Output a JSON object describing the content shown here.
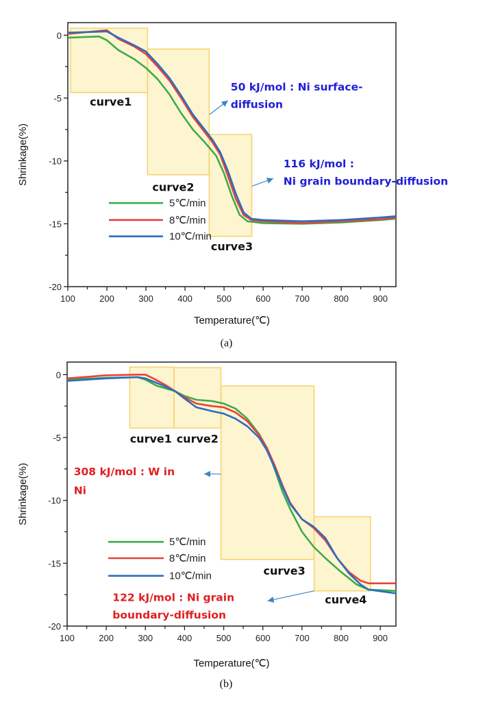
{
  "colors": {
    "series_5": "#3cab4a",
    "series_8": "#e8413c",
    "series_10": "#2a6ebf",
    "box_fill": "#fdf2c8",
    "box_stroke": "#f5d36a",
    "annot_blue": "#1f1fd6",
    "annot_red": "#e02020",
    "arrow": "#3f86c4"
  },
  "chart_data": [
    {
      "type": "line",
      "caption": "(a)",
      "xlabel": "Temperature(℃)",
      "ylabel": "Shrinkage(%)",
      "xlim": [
        100,
        940
      ],
      "ylim": [
        -20,
        1
      ],
      "xticks": [
        "100",
        "200",
        "300",
        "400",
        "500",
        "600",
        "700",
        "800",
        "900"
      ],
      "yticks": [
        "0",
        "-5",
        "-10",
        "-15",
        "-20"
      ],
      "grid": false,
      "legend_placement": "lower-left",
      "series": [
        {
          "name": "5℃/min",
          "color_key": "series_5",
          "x": [
            100,
            180,
            200,
            230,
            270,
            300,
            330,
            360,
            390,
            420,
            450,
            480,
            500,
            520,
            540,
            560,
            600,
            700,
            800,
            900,
            940
          ],
          "y": [
            -0.2,
            -0.1,
            -0.4,
            -1.2,
            -1.9,
            -2.6,
            -3.5,
            -4.7,
            -6.2,
            -7.5,
            -8.5,
            -9.6,
            -11,
            -12.8,
            -14.3,
            -14.8,
            -14.95,
            -15.0,
            -14.9,
            -14.7,
            -14.6
          ]
        },
        {
          "name": "8℃/min",
          "color_key": "series_8",
          "x": [
            100,
            200,
            230,
            270,
            300,
            330,
            360,
            390,
            420,
            450,
            470,
            490,
            510,
            530,
            550,
            570,
            600,
            700,
            800,
            900,
            940
          ],
          "y": [
            0.1,
            0.4,
            -0.3,
            -0.9,
            -1.5,
            -2.5,
            -3.6,
            -5,
            -6.5,
            -7.7,
            -8.5,
            -9.5,
            -11.2,
            -13,
            -14.3,
            -14.7,
            -14.8,
            -14.95,
            -14.8,
            -14.65,
            -14.5
          ]
        },
        {
          "name": "10℃/min",
          "color_key": "series_10",
          "x": [
            100,
            200,
            230,
            270,
            300,
            330,
            360,
            390,
            420,
            450,
            470,
            490,
            510,
            530,
            550,
            570,
            600,
            700,
            800,
            900,
            940
          ],
          "y": [
            0.2,
            0.3,
            -0.2,
            -0.8,
            -1.3,
            -2.3,
            -3.4,
            -4.8,
            -6.3,
            -7.5,
            -8.3,
            -9.3,
            -10.8,
            -12.6,
            -14.1,
            -14.6,
            -14.7,
            -14.8,
            -14.7,
            -14.5,
            -14.4
          ]
        }
      ],
      "regions": [
        {
          "label": "curve1",
          "x": [
            107,
            304
          ],
          "y": [
            0.56,
            -4.56
          ]
        },
        {
          "label": "curve2",
          "x": [
            304,
            462
          ],
          "y": [
            -1.1,
            -11.1
          ]
        },
        {
          "label": "curve3",
          "x": [
            462,
            571
          ],
          "y": [
            -7.9,
            -16.0
          ]
        }
      ],
      "annotations": [
        {
          "lines": [
            "50 kJ/mol : Ni surface-",
            "diffusion"
          ],
          "color_key": "annot_blue",
          "from": [
            463,
            -6.3
          ],
          "to": [
            510,
            -5.2
          ]
        },
        {
          "lines": [
            "116 kJ/mol :",
            "Ni grain boundary-diffusion"
          ],
          "color_key": "annot_blue",
          "from": [
            572,
            -12.0
          ],
          "to": [
            626,
            -11.4
          ]
        }
      ]
    },
    {
      "type": "line",
      "caption": "(b)",
      "xlabel": "Temperature(℃)",
      "ylabel": "Shrinkage(%)",
      "xlim": [
        100,
        940
      ],
      "ylim": [
        -20,
        1
      ],
      "xticks": [
        "100",
        "200",
        "300",
        "400",
        "500",
        "600",
        "700",
        "800",
        "900"
      ],
      "yticks": [
        "0",
        "-5",
        "-10",
        "-15",
        "-20"
      ],
      "grid": false,
      "legend_placement": "lower-left",
      "series": [
        {
          "name": "5℃/min",
          "color_key": "series_5",
          "x": [
            100,
            200,
            280,
            300,
            330,
            375,
            400,
            430,
            470,
            500,
            530,
            560,
            590,
            610,
            630,
            650,
            670,
            700,
            730,
            760,
            800,
            840,
            870,
            940
          ],
          "y": [
            -0.4,
            -0.25,
            -0.2,
            -0.4,
            -0.9,
            -1.3,
            -1.7,
            -2.0,
            -2.1,
            -2.3,
            -2.7,
            -3.5,
            -4.7,
            -5.8,
            -7.5,
            -9.3,
            -10.7,
            -12.5,
            -13.7,
            -14.6,
            -15.7,
            -16.7,
            -17.1,
            -17.2
          ]
        },
        {
          "name": "8℃/min",
          "color_key": "series_8",
          "x": [
            100,
            200,
            280,
            300,
            320,
            350,
            375,
            400,
            430,
            470,
            500,
            530,
            560,
            590,
            610,
            630,
            650,
            670,
            700,
            730,
            760,
            790,
            820,
            850,
            870,
            940
          ],
          "y": [
            -0.3,
            -0.05,
            0,
            0,
            -0.3,
            -0.8,
            -1.3,
            -1.8,
            -2.3,
            -2.5,
            -2.6,
            -3.0,
            -3.7,
            -4.8,
            -5.8,
            -7.2,
            -8.8,
            -10.2,
            -11.5,
            -12.2,
            -13.2,
            -14.6,
            -15.7,
            -16.4,
            -16.6,
            -16.6
          ]
        },
        {
          "name": "10℃/min",
          "color_key": "series_10",
          "x": [
            100,
            200,
            280,
            300,
            340,
            375,
            400,
            430,
            470,
            500,
            530,
            560,
            590,
            610,
            630,
            650,
            670,
            700,
            730,
            760,
            790,
            820,
            850,
            870,
            940
          ],
          "y": [
            -0.5,
            -0.3,
            -0.2,
            -0.3,
            -0.8,
            -1.3,
            -1.9,
            -2.6,
            -2.9,
            -3.1,
            -3.5,
            -4.1,
            -5.0,
            -6.0,
            -7.4,
            -8.9,
            -10.3,
            -11.5,
            -12.1,
            -13.0,
            -14.6,
            -15.8,
            -16.7,
            -17.1,
            -17.4
          ]
        }
      ],
      "regions": [
        {
          "label": "curve1",
          "x": [
            260,
            373
          ],
          "y": [
            0.6,
            -4.24
          ]
        },
        {
          "label": "curve2",
          "x": [
            373,
            493
          ],
          "y": [
            0.55,
            -4.24
          ]
        },
        {
          "label": "curve3",
          "x": [
            493,
            731
          ],
          "y": [
            -0.9,
            -14.7
          ]
        },
        {
          "label": "curve4",
          "x": [
            731,
            875
          ],
          "y": [
            -11.3,
            -17.2
          ]
        }
      ],
      "annotations": [
        {
          "lines": [
            "308 kJ/mol : W in",
            "Ni"
          ],
          "color_key": "annot_red",
          "from": [
            493,
            -7.9
          ],
          "to": [
            450,
            -7.9
          ]
        },
        {
          "lines": [
            "122 kJ/mol : Ni grain",
            "boundary-diffusion"
          ],
          "color_key": "annot_red",
          "from": [
            731,
            -17.2
          ],
          "to": [
            612,
            -18.0
          ]
        }
      ]
    }
  ]
}
